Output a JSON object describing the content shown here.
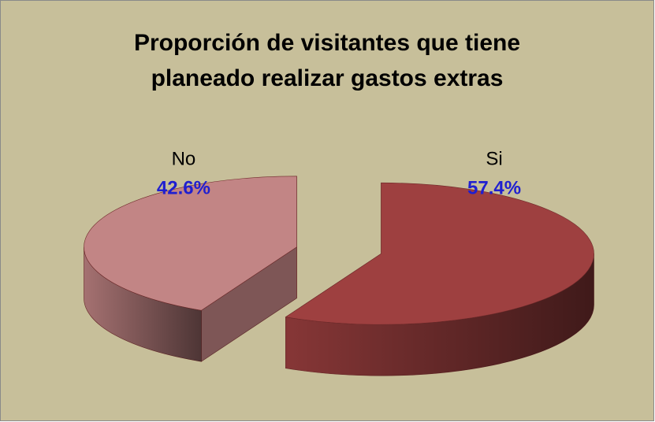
{
  "chart_data": {
    "type": "pie3d",
    "title": [
      "Proporción de visitantes que tiene",
      "planeado realizar gastos extras"
    ],
    "categories": [
      "Si",
      "No"
    ],
    "values": [
      57.4,
      42.6
    ],
    "value_labels": [
      "57.4%",
      "42.6%"
    ],
    "colors": [
      "#9e4040",
      "#c28585"
    ],
    "label_color": "#1f1fd0"
  }
}
